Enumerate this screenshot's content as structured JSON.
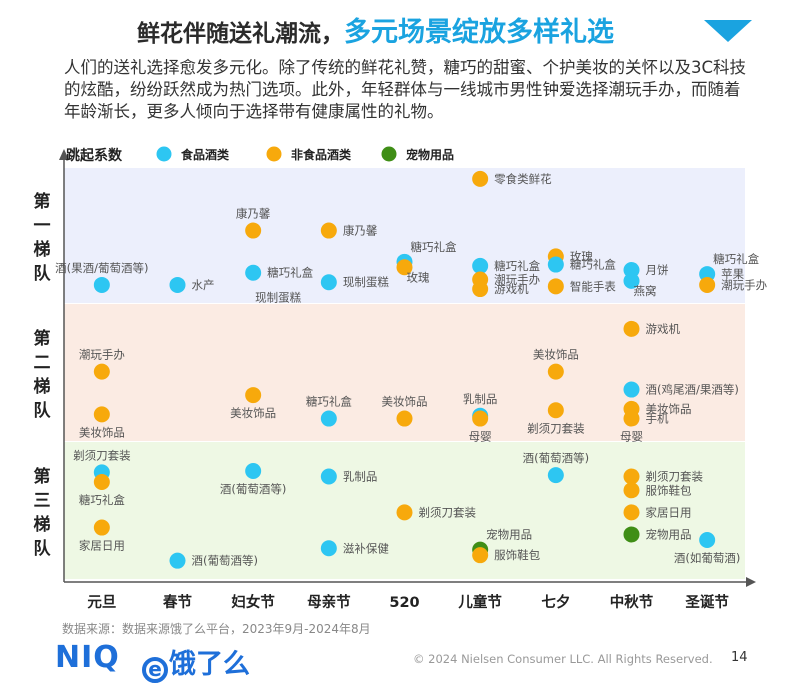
{
  "title": {
    "part1": "鲜花伴随送礼潮流，",
    "part2": "多元场景绽放多样礼选"
  },
  "intro": "人们的送礼选择愈发多元化。除了传统的鲜花礼赞，糖巧的甜蜜、个护美妆的关怀以及3C科技的炫酷，纷纷跃然成为热门选项。此外，年轻群体与一线城市男性钟爱选择潮玩手办，而随着年龄渐长，更多人倾向于选择带有健康属性的礼物。",
  "source": "数据来源：数据来源饿了么平台，2023年9月-2024年8月",
  "footer": {
    "niq": "NIQ",
    "ele_e": "e",
    "ele": "饿了么",
    "copyright": "© 2024 Nielsen Consumer LLC. All Rights Reserved.",
    "page": "14"
  },
  "chart_data": {
    "type": "scatter",
    "ylabel": "跳起系数",
    "tiers": [
      "第一梯队",
      "第二梯队",
      "第三梯队"
    ],
    "tier_colors": [
      "#eceffc",
      "#fbebe3",
      "#eef8e4"
    ],
    "categories": [
      "元旦",
      "春节",
      "妇女节",
      "母亲节",
      "520",
      "儿童节",
      "七夕",
      "中秋节",
      "圣诞节"
    ],
    "series": [
      {
        "name": "食品酒类",
        "color": "#2dc6f2"
      },
      {
        "name": "非食品酒类",
        "color": "#f7a90c"
      },
      {
        "name": "宠物用品",
        "color": "#3f8e16"
      }
    ],
    "points": [
      {
        "x": "元旦",
        "tier": 1,
        "y": 0.14,
        "series": "食品酒类",
        "label": "酒(果酒/葡萄酒等)",
        "lp": "above"
      },
      {
        "x": "春节",
        "tier": 1,
        "y": 0.14,
        "series": "食品酒类",
        "label": "水产",
        "lp": "right"
      },
      {
        "x": "妇女节",
        "tier": 1,
        "y": 0.54,
        "series": "非食品酒类",
        "label": "康乃馨",
        "lp": "above"
      },
      {
        "x": "妇女节",
        "tier": 1,
        "y": 0.23,
        "series": "食品酒类",
        "label": "糖巧礼盒",
        "lp": "right"
      },
      {
        "x": "妇女节",
        "tier": 1,
        "y": 0.12,
        "series": "",
        "label": "现制蛋糕",
        "lp": "belowright"
      },
      {
        "x": "母亲节",
        "tier": 1,
        "y": 0.54,
        "series": "非食品酒类",
        "label": "康乃馨",
        "lp": "right"
      },
      {
        "x": "母亲节",
        "tier": 1,
        "y": 0.16,
        "series": "食品酒类",
        "label": "现制蛋糕",
        "lp": "right"
      },
      {
        "x": "520",
        "tier": 1,
        "y": 0.31,
        "series": "食品酒类",
        "label": "糖巧礼盒",
        "lp": "aboveright"
      },
      {
        "x": "520",
        "tier": 1,
        "y": 0.27,
        "series": "非食品酒类",
        "label": "玫瑰",
        "lp": "belowright"
      },
      {
        "x": "儿童节",
        "tier": 1,
        "y": 0.92,
        "series": "非食品酒类",
        "label": "零食类鲜花",
        "lp": "right"
      },
      {
        "x": "儿童节",
        "tier": 1,
        "y": 0.28,
        "series": "食品酒类",
        "label": "糖巧礼盒",
        "lp": "right"
      },
      {
        "x": "儿童节",
        "tier": 1,
        "y": 0.18,
        "series": "非食品酒类",
        "label": "潮玩手办",
        "lp": "right"
      },
      {
        "x": "儿童节",
        "tier": 1,
        "y": 0.11,
        "series": "非食品酒类",
        "label": "游戏机",
        "lp": "right"
      },
      {
        "x": "七夕",
        "tier": 1,
        "y": 0.35,
        "series": "非食品酒类",
        "label": "玫瑰",
        "lp": "right"
      },
      {
        "x": "七夕",
        "tier": 1,
        "y": 0.29,
        "series": "食品酒类",
        "label": "糖巧礼盒",
        "lp": "right"
      },
      {
        "x": "七夕",
        "tier": 1,
        "y": 0.13,
        "series": "非食品酒类",
        "label": "智能手表",
        "lp": "right"
      },
      {
        "x": "中秋节",
        "tier": 1,
        "y": 0.25,
        "series": "食品酒类",
        "label": "月饼",
        "lp": "right"
      },
      {
        "x": "中秋节",
        "tier": 1,
        "y": 0.17,
        "series": "食品酒类",
        "label": "燕窝",
        "lp": "belowright"
      },
      {
        "x": "圣诞节",
        "tier": 1,
        "y": 0.22,
        "series": "食品酒类",
        "label": "糖巧礼盒",
        "lp": "aboveright"
      },
      {
        "x": "圣诞节",
        "tier": 1,
        "y": 0.22,
        "series": "",
        "label": "苹果",
        "lp": "right"
      },
      {
        "x": "圣诞节",
        "tier": 1,
        "y": 0.14,
        "series": "非食品酒类",
        "label": "潮玩手办",
        "lp": "right"
      },
      {
        "x": "元旦",
        "tier": 2,
        "y": 0.51,
        "series": "非食品酒类",
        "label": "潮玩手办",
        "lp": "above"
      },
      {
        "x": "元旦",
        "tier": 2,
        "y": 0.2,
        "series": "非食品酒类",
        "label": "美妆饰品",
        "lp": "below"
      },
      {
        "x": "妇女节",
        "tier": 2,
        "y": 0.34,
        "series": "非食品酒类",
        "label": "美妆饰品",
        "lp": "belowleft"
      },
      {
        "x": "母亲节",
        "tier": 2,
        "y": 0.17,
        "series": "食品酒类",
        "label": "糖巧礼盒",
        "lp": "above"
      },
      {
        "x": "520",
        "tier": 2,
        "y": 0.17,
        "series": "非食品酒类",
        "label": "美妆饰品",
        "lp": "above"
      },
      {
        "x": "儿童节",
        "tier": 2,
        "y": 0.19,
        "series": "食品酒类",
        "label": "乳制品",
        "lp": "above"
      },
      {
        "x": "儿童节",
        "tier": 2,
        "y": 0.17,
        "series": "非食品酒类",
        "label": "母婴",
        "lp": "below"
      },
      {
        "x": "七夕",
        "tier": 2,
        "y": 0.51,
        "series": "非食品酒类",
        "label": "美妆饰品",
        "lp": "above"
      },
      {
        "x": "七夕",
        "tier": 2,
        "y": 0.23,
        "series": "非食品酒类",
        "label": "剃须刀套装",
        "lp": "below"
      },
      {
        "x": "中秋节",
        "tier": 2,
        "y": 0.82,
        "series": "非食品酒类",
        "label": "游戏机",
        "lp": "right"
      },
      {
        "x": "中秋节",
        "tier": 2,
        "y": 0.38,
        "series": "食品酒类",
        "label": "酒(鸡尾酒/果酒等)",
        "lp": "right"
      },
      {
        "x": "中秋节",
        "tier": 2,
        "y": 0.24,
        "series": "非食品酒类",
        "label": "美妆饰品",
        "lp": "right"
      },
      {
        "x": "中秋节",
        "tier": 2,
        "y": 0.17,
        "series": "非食品酒类",
        "label": "手机",
        "lp": "right"
      },
      {
        "x": "中秋节",
        "tier": 2,
        "y": 0.17,
        "series": "",
        "label": "母婴",
        "lp": "below"
      },
      {
        "x": "元旦",
        "tier": 3,
        "y": 0.78,
        "series": "食品酒类",
        "label": "剃须刀套装",
        "lp": "above"
      },
      {
        "x": "元旦",
        "tier": 3,
        "y": 0.71,
        "series": "非食品酒类",
        "label": "糖巧礼盒",
        "lp": "below"
      },
      {
        "x": "元旦",
        "tier": 3,
        "y": 0.38,
        "series": "非食品酒类",
        "label": "家居日用",
        "lp": "below"
      },
      {
        "x": "春节",
        "tier": 3,
        "y": 0.14,
        "series": "食品酒类",
        "label": "酒(葡萄酒等)",
        "lp": "right"
      },
      {
        "x": "妇女节",
        "tier": 3,
        "y": 0.79,
        "series": "食品酒类",
        "label": "酒(葡萄酒等)",
        "lp": "belowleft"
      },
      {
        "x": "母亲节",
        "tier": 3,
        "y": 0.75,
        "series": "食品酒类",
        "label": "乳制品",
        "lp": "right"
      },
      {
        "x": "母亲节",
        "tier": 3,
        "y": 0.23,
        "series": "食品酒类",
        "label": "滋补保健",
        "lp": "right"
      },
      {
        "x": "520",
        "tier": 3,
        "y": 0.49,
        "series": "非食品酒类",
        "label": "剃须刀套装",
        "lp": "right"
      },
      {
        "x": "儿童节",
        "tier": 3,
        "y": 0.22,
        "series": "宠物用品",
        "label": "宠物用品",
        "lp": "aboveright"
      },
      {
        "x": "儿童节",
        "tier": 3,
        "y": 0.18,
        "series": "非食品酒类",
        "label": "服饰鞋包",
        "lp": "right"
      },
      {
        "x": "七夕",
        "tier": 3,
        "y": 0.76,
        "series": "食品酒类",
        "label": "酒(葡萄酒等)",
        "lp": "above"
      },
      {
        "x": "中秋节",
        "tier": 3,
        "y": 0.75,
        "series": "非食品酒类",
        "label": "剃须刀套装",
        "lp": "right"
      },
      {
        "x": "中秋节",
        "tier": 3,
        "y": 0.65,
        "series": "非食品酒类",
        "label": "服饰鞋包",
        "lp": "right"
      },
      {
        "x": "中秋节",
        "tier": 3,
        "y": 0.49,
        "series": "非食品酒类",
        "label": "家居日用",
        "lp": "right"
      },
      {
        "x": "中秋节",
        "tier": 3,
        "y": 0.33,
        "series": "宠物用品",
        "label": "宠物用品",
        "lp": "right"
      },
      {
        "x": "圣诞节",
        "tier": 3,
        "y": 0.29,
        "series": "食品酒类",
        "label": "酒(如葡萄酒)",
        "lp": "below"
      }
    ]
  }
}
